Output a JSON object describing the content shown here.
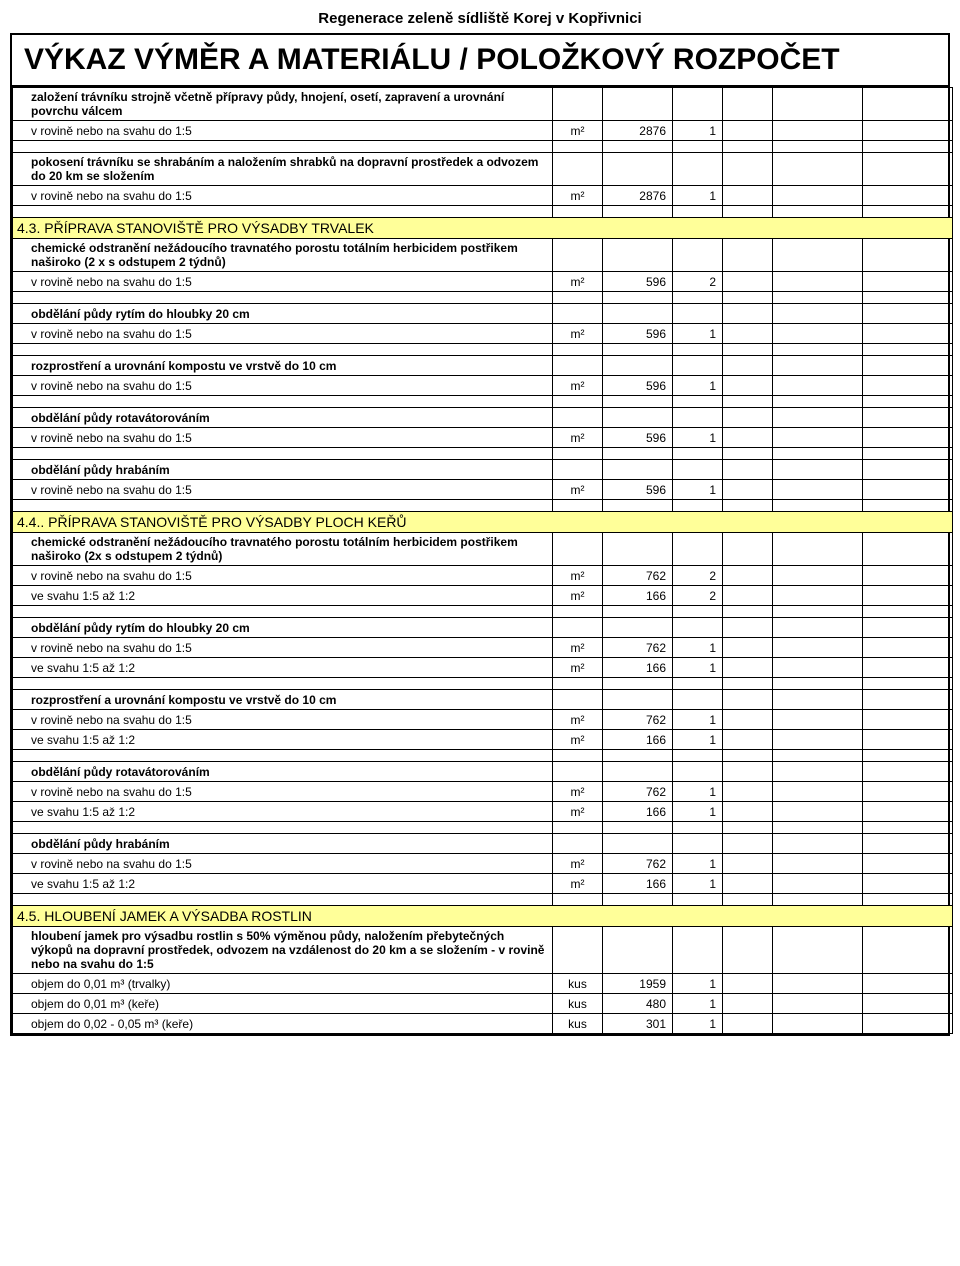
{
  "header_title": "Regenerace zeleně sídliště Korej v Kopřivnici",
  "main_title": "VÝKAZ VÝMĚR A MATERIÁLU / POLOŽKOVÝ ROZPOČET",
  "colors": {
    "section_bg": "#ffff99",
    "border": "#000000",
    "background": "#ffffff"
  },
  "rows": [
    {
      "t": "desc",
      "text": "založení trávníku strojně včetně přípravy půdy, hnojení, osetí, zapravení a urovnání povrchu válcem"
    },
    {
      "t": "data",
      "text": "v rovině nebo na svahu do 1:5",
      "unit": "m²",
      "qty": "2876",
      "n": "1"
    },
    {
      "t": "spacer"
    },
    {
      "t": "desc",
      "text": "pokosení trávníku se shrabáním a naložením shrabků na dopravní prostředek a odvozem do 20 km se složením"
    },
    {
      "t": "data",
      "text": "v rovině nebo na svahu do 1:5",
      "unit": "m²",
      "qty": "2876",
      "n": "1"
    },
    {
      "t": "spacer"
    },
    {
      "t": "section",
      "num": "4.3.",
      "title": "PŘÍPRAVA STANOVIŠTĚ PRO VÝSADBY TRVALEK"
    },
    {
      "t": "desc",
      "text": "chemické odstranění nežádoucího travnatého porostu totálním herbicidem  postřikem naširoko (2 x s odstupem 2 týdnů)"
    },
    {
      "t": "data",
      "text": "v rovině nebo na svahu do 1:5",
      "unit": "m²",
      "qty": "596",
      "n": "2"
    },
    {
      "t": "spacer"
    },
    {
      "t": "desc",
      "text": "obdělání půdy rytím do hloubky 20 cm"
    },
    {
      "t": "data",
      "text": "v rovině nebo na svahu do 1:5",
      "unit": "m²",
      "qty": "596",
      "n": "1"
    },
    {
      "t": "spacer"
    },
    {
      "t": "desc",
      "text": "rozprostření a urovnání kompostu ve vrstvě do 10 cm"
    },
    {
      "t": "data",
      "text": "v rovině nebo na svahu do 1:5",
      "unit": "m²",
      "qty": "596",
      "n": "1"
    },
    {
      "t": "spacer"
    },
    {
      "t": "desc",
      "text": "obdělání půdy rotavátorováním"
    },
    {
      "t": "data",
      "text": "v rovině nebo na svahu do 1:5",
      "unit": "m²",
      "qty": "596",
      "n": "1"
    },
    {
      "t": "spacer"
    },
    {
      "t": "desc",
      "text": "obdělání půdy hrabáním"
    },
    {
      "t": "data",
      "text": "v rovině nebo na svahu do 1:5",
      "unit": "m²",
      "qty": "596",
      "n": "1"
    },
    {
      "t": "spacer"
    },
    {
      "t": "section",
      "num": "4.4..",
      "title": "PŘÍPRAVA STANOVIŠTĚ PRO VÝSADBY PLOCH KEŘŮ"
    },
    {
      "t": "desc",
      "text": "chemické odstranění nežádoucího travnatého porostu totálním herbicidem  postřikem naširoko (2x s odstupem 2 týdnů)"
    },
    {
      "t": "data",
      "text": "v rovině nebo na svahu do 1:5",
      "unit": "m²",
      "qty": "762",
      "n": "2"
    },
    {
      "t": "data",
      "text": "ve svahu 1:5 až 1:2",
      "unit": "m²",
      "qty": "166",
      "n": "2"
    },
    {
      "t": "spacer"
    },
    {
      "t": "desc",
      "text": "obdělání půdy rytím do hloubky 20 cm"
    },
    {
      "t": "data",
      "text": "v rovině nebo na svahu do 1:5",
      "unit": "m²",
      "qty": "762",
      "n": "1"
    },
    {
      "t": "data",
      "text": "ve svahu 1:5 až 1:2",
      "unit": "m²",
      "qty": "166",
      "n": "1"
    },
    {
      "t": "spacer"
    },
    {
      "t": "desc",
      "text": "rozprostření a urovnání kompostu ve vrstvě do 10 cm"
    },
    {
      "t": "data",
      "text": "v rovině nebo na svahu do 1:5",
      "unit": "m²",
      "qty": "762",
      "n": "1"
    },
    {
      "t": "data",
      "text": "ve svahu 1:5 až 1:2",
      "unit": "m²",
      "qty": "166",
      "n": "1"
    },
    {
      "t": "spacer"
    },
    {
      "t": "desc",
      "text": "obdělání půdy rotavátorováním"
    },
    {
      "t": "data",
      "text": "v rovině nebo na svahu do 1:5",
      "unit": "m²",
      "qty": "762",
      "n": "1"
    },
    {
      "t": "data",
      "text": "ve svahu 1:5 až 1:2",
      "unit": "m²",
      "qty": "166",
      "n": "1"
    },
    {
      "t": "spacer"
    },
    {
      "t": "desc",
      "text": "obdělání půdy hrabáním"
    },
    {
      "t": "data",
      "text": "v rovině nebo na svahu do 1:5",
      "unit": "m²",
      "qty": "762",
      "n": "1"
    },
    {
      "t": "data",
      "text": "ve svahu 1:5 až 1:2",
      "unit": "m²",
      "qty": "166",
      "n": "1"
    },
    {
      "t": "spacer"
    },
    {
      "t": "section",
      "num": "4.5.",
      "title": "HLOUBENÍ JAMEK A VÝSADBA ROSTLIN"
    },
    {
      "t": "desc",
      "text": "hloubení jamek pro výsadbu rostlin s 50% výměnou půdy, naložením přebytečných výkopů na dopravní prostředek, odvozem na vzdálenost do 20 km a se složením - v rovině nebo na svahu do 1:5"
    },
    {
      "t": "data",
      "text": "objem do 0,01 m³ (trvalky)",
      "unit": "kus",
      "qty": "1959",
      "n": "1"
    },
    {
      "t": "data",
      "text": "objem do 0,01 m³ (keře)",
      "unit": "kus",
      "qty": "480",
      "n": "1"
    },
    {
      "t": "data",
      "text": "objem do 0,02 - 0,05 m³ (keře)",
      "unit": "kus",
      "qty": "301",
      "n": "1"
    }
  ]
}
